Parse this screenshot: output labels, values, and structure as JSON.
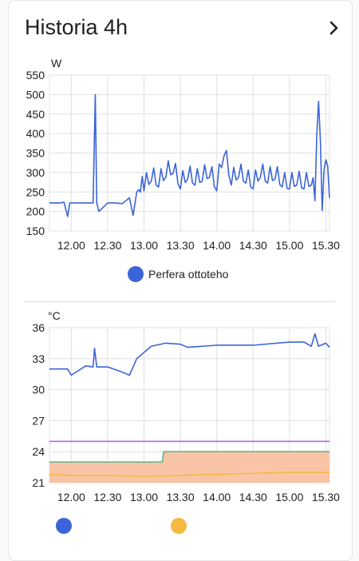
{
  "card": {
    "title": "Historia 4h"
  },
  "colors": {
    "blue": "#3b64d8",
    "purple": "#a86de0",
    "green": "#5fb48a",
    "orange": "#f5b942",
    "orange_fill": "#f9c4a6",
    "grid": "#e0e0e0"
  },
  "chart_data": [
    {
      "type": "line",
      "ylabel": "W",
      "ylim": [
        150,
        550
      ],
      "y_ticks": [
        "550",
        "500",
        "450",
        "400",
        "350",
        "300",
        "250",
        "200",
        "150"
      ],
      "x_ticks": [
        "12.00",
        "12.30",
        "13.00",
        "13.30",
        "14.00",
        "14.30",
        "15.00",
        "15.30"
      ],
      "series": [
        {
          "name": "Perfera ottoteho",
          "color": "#3b64d8",
          "x": [
            11.7,
            11.85,
            11.9,
            11.95,
            11.98,
            12.05,
            12.2,
            12.3,
            12.33,
            12.35,
            12.38,
            12.5,
            12.6,
            12.7,
            12.8,
            12.85,
            12.9,
            12.95,
            13.0,
            13.1,
            13.2,
            13.3,
            13.4,
            13.5,
            13.6,
            13.7,
            13.8,
            13.9,
            14.0,
            14.1,
            14.2,
            14.3,
            14.4,
            14.5,
            14.6,
            14.7,
            14.8,
            14.9,
            15.0,
            15.1,
            15.2,
            15.3,
            15.35,
            15.4,
            15.45,
            15.5,
            15.55
          ],
          "y": [
            222,
            222,
            224,
            187,
            222,
            222,
            222,
            222,
            500,
            222,
            200,
            222,
            222,
            220,
            235,
            190,
            250,
            262,
            265,
            290,
            275,
            300,
            310,
            270,
            295,
            280,
            290,
            300,
            265,
            355,
            280,
            300,
            285,
            270,
            300,
            285,
            295,
            275,
            270,
            280,
            270,
            280,
            240,
            495,
            215,
            345,
            235
          ]
        }
      ]
    },
    {
      "type": "line",
      "ylabel": "°C",
      "ylim": [
        21,
        36
      ],
      "y_ticks": [
        "36",
        "33",
        "30",
        "27",
        "24",
        "21"
      ],
      "x_ticks": [
        "12.00",
        "12.30",
        "13.00",
        "13.30",
        "14.00",
        "14.30",
        "15.00",
        "15.30"
      ],
      "series": [
        {
          "color": "#3b64d8",
          "x": [
            11.7,
            11.95,
            12.0,
            12.2,
            12.3,
            12.32,
            12.35,
            12.5,
            12.7,
            12.8,
            12.9,
            13.0,
            13.1,
            13.3,
            13.5,
            13.6,
            14.0,
            14.5,
            15.0,
            15.2,
            15.3,
            15.35,
            15.4,
            15.5,
            15.55
          ],
          "y": [
            32,
            32,
            31.4,
            32.3,
            32.2,
            34,
            32.2,
            32.2,
            31.7,
            31.4,
            33,
            33.6,
            34.2,
            34.5,
            34.4,
            34.1,
            34.3,
            34.3,
            34.6,
            34.6,
            34.2,
            35.4,
            34.2,
            34.5,
            34.1
          ]
        },
        {
          "color": "#a86de0",
          "x": [
            11.7,
            15.55
          ],
          "y": [
            25,
            25
          ]
        },
        {
          "color": "#5fb48a",
          "x": [
            11.7,
            13.25,
            13.27,
            15.55
          ],
          "y": [
            23,
            23,
            24,
            24
          ]
        },
        {
          "color": "#f5b942",
          "x": [
            11.7,
            12.0,
            12.5,
            13.0,
            13.5,
            14.0,
            14.5,
            15.0,
            15.55
          ],
          "y": [
            21.8,
            21.7,
            21.7,
            21.6,
            21.7,
            21.8,
            21.9,
            22.0,
            22.0
          ]
        }
      ]
    }
  ]
}
